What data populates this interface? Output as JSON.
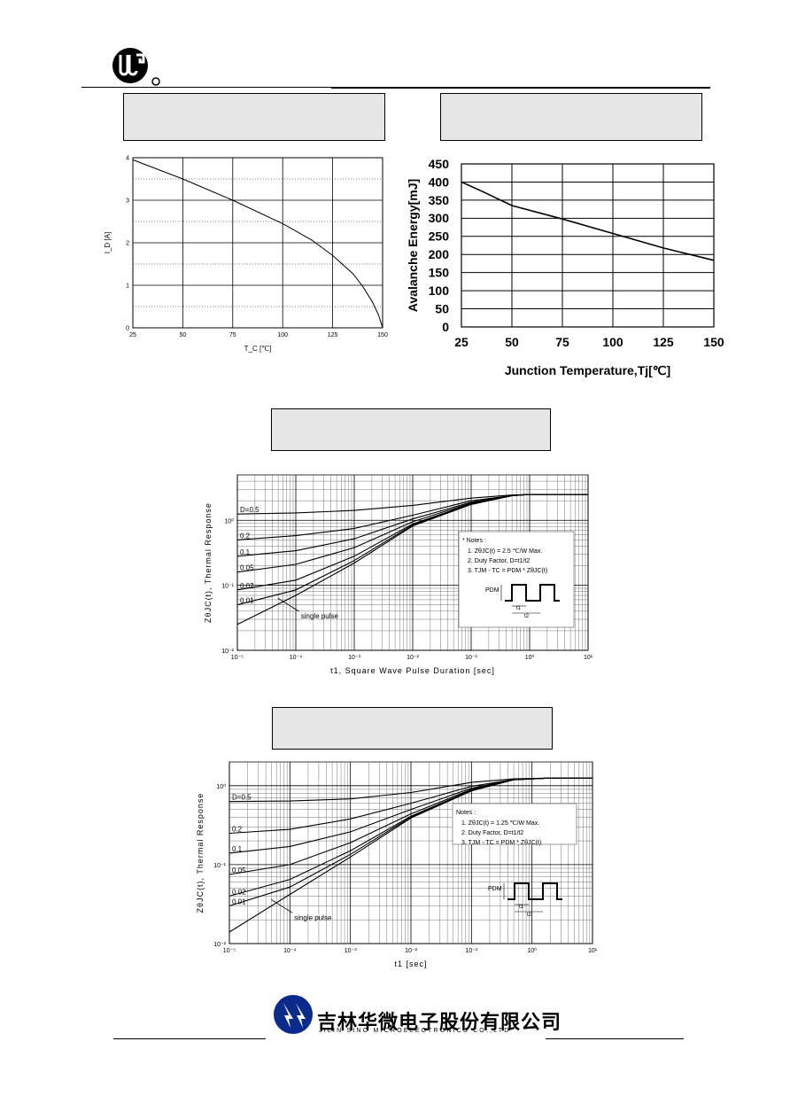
{
  "company": {
    "name_cn": "吉林华微电子股份有限公司",
    "name_en": "JILIN  SINO  MICROELECTRONICS  CO.,LTD"
  },
  "figures": {
    "id_vs_tc": {
      "chart_data": {
        "type": "line",
        "xlabel": "T_C [℃]",
        "ylabel": "I_D [A]",
        "xlim": [
          25,
          150
        ],
        "ylim": [
          0,
          4
        ],
        "xticks": [
          25,
          50,
          75,
          100,
          125,
          150
        ],
        "yticks": [
          0,
          1,
          2,
          3,
          4
        ],
        "grid": true,
        "series": [
          {
            "x": [
              25,
              50,
              75,
              100,
              115,
              125,
              135,
              140,
              145,
              148,
              150
            ],
            "y": [
              3.95,
              3.5,
              3.0,
              2.45,
              2.05,
              1.7,
              1.28,
              0.98,
              0.6,
              0.3,
              0
            ]
          }
        ]
      }
    },
    "eas_vs_tj": {
      "chart_data": {
        "type": "line",
        "xlabel": "Junction Temperature,Tj[℃]",
        "ylabel": "Avalanche Energy[mJ]",
        "xlim": [
          25,
          150
        ],
        "ylim": [
          0,
          450
        ],
        "xticks": [
          25,
          50,
          75,
          100,
          125,
          150
        ],
        "yticks": [
          0,
          50,
          100,
          150,
          200,
          250,
          300,
          350,
          400,
          450
        ],
        "grid": true,
        "series": [
          {
            "x": [
              25,
              35,
              50,
              75,
              100,
              125,
              150
            ],
            "y": [
              400,
              375,
              335,
              298,
              258,
              218,
              184
            ]
          }
        ]
      }
    },
    "thermal_1": {
      "chart_data": {
        "type": "line",
        "scale": "log-log",
        "xlabel": "t1, Square Wave Pulse Duration [sec]",
        "ylabel": "ZθJC(t), Thermal Response",
        "xlim": [
          1e-05,
          10
        ],
        "ylim": [
          0.01,
          5
        ],
        "xticks": [
          "10⁻⁵",
          "10⁻⁴",
          "10⁻³",
          "10⁻²",
          "10⁻¹",
          "10⁰",
          "10¹"
        ],
        "yticks": [
          "10⁻²",
          "10⁻¹",
          "10⁰"
        ],
        "grid": true,
        "series": [
          {
            "name": "D=0.5",
            "x": [
              1e-05,
              0.0001,
              0.001,
              0.01,
              0.1,
              0.5,
              1,
              10
            ],
            "y": [
              1.25,
              1.3,
              1.42,
              1.7,
              2.2,
              2.45,
              2.5,
              2.5
            ]
          },
          {
            "name": "0.2",
            "x": [
              1e-05,
              0.0001,
              0.001,
              0.01,
              0.1,
              0.5,
              1,
              10
            ],
            "y": [
              0.5,
              0.58,
              0.75,
              1.2,
              2.0,
              2.4,
              2.5,
              2.5
            ]
          },
          {
            "name": "0.1",
            "x": [
              1e-05,
              0.0001,
              0.001,
              0.01,
              0.1,
              0.5,
              1,
              10
            ],
            "y": [
              0.28,
              0.34,
              0.52,
              1.05,
              1.9,
              2.4,
              2.5,
              2.5
            ]
          },
          {
            "name": "0.05",
            "x": [
              1e-05,
              0.0001,
              0.001,
              0.01,
              0.1,
              0.5,
              1,
              10
            ],
            "y": [
              0.16,
              0.21,
              0.38,
              0.95,
              1.85,
              2.4,
              2.5,
              2.5
            ]
          },
          {
            "name": "0.02",
            "x": [
              1e-05,
              0.0001,
              0.001,
              0.01,
              0.1,
              0.5,
              1,
              10
            ],
            "y": [
              0.085,
              0.12,
              0.28,
              0.88,
              1.8,
              2.4,
              2.5,
              2.5
            ]
          },
          {
            "name": "0.01",
            "x": [
              1e-05,
              0.0001,
              0.001,
              0.01,
              0.1,
              0.5,
              1,
              10
            ],
            "y": [
              0.05,
              0.085,
              0.24,
              0.85,
              1.78,
              2.4,
              2.5,
              2.5
            ]
          },
          {
            "name": "single pulse",
            "x": [
              1e-05,
              0.0001,
              0.001,
              0.01,
              0.1,
              0.5,
              1,
              10
            ],
            "y": [
              0.025,
              0.07,
              0.22,
              0.82,
              1.75,
              2.4,
              2.5,
              2.5
            ]
          }
        ],
        "annotation": "single pulse"
      },
      "notes": {
        "title": "* Notes :",
        "line1": "1. ZθJC(t) = 2.5 ℃/W Max.",
        "line2": "2. Duty Factor, D=t1/t2",
        "line3": "3. TJM - TC = PDM * ZθJC(t)",
        "pdm": "PDM",
        "t1": "t1",
        "t2": "t2"
      }
    },
    "thermal_2": {
      "chart_data": {
        "type": "line",
        "scale": "log-log",
        "xlabel": "t1 [sec]",
        "ylabel": "ZθJC(t), Thermal Response",
        "xlim": [
          1e-05,
          10
        ],
        "ylim": [
          0.01,
          2
        ],
        "xticks": [
          "10⁻⁵",
          "10⁻⁴",
          "10⁻³",
          "10⁻²",
          "10⁻¹",
          "10⁰",
          "10¹"
        ],
        "yticks": [
          "10⁻²",
          "10⁻¹",
          "10⁰"
        ],
        "grid": true,
        "series": [
          {
            "name": "D=0.5",
            "x": [
              1e-05,
              0.0001,
              0.001,
              0.01,
              0.1,
              0.5,
              2,
              10
            ],
            "y": [
              0.63,
              0.64,
              0.68,
              0.82,
              1.1,
              1.22,
              1.25,
              1.25
            ]
          },
          {
            "name": "0.2",
            "x": [
              1e-05,
              0.0001,
              0.001,
              0.01,
              0.1,
              0.5,
              2,
              10
            ],
            "y": [
              0.25,
              0.28,
              0.38,
              0.6,
              0.98,
              1.2,
              1.25,
              1.25
            ]
          },
          {
            "name": "0.1",
            "x": [
              1e-05,
              0.0001,
              0.001,
              0.01,
              0.1,
              0.5,
              2,
              10
            ],
            "y": [
              0.14,
              0.17,
              0.26,
              0.5,
              0.93,
              1.2,
              1.25,
              1.25
            ]
          },
          {
            "name": "0.05",
            "x": [
              1e-05,
              0.0001,
              0.001,
              0.01,
              0.1,
              0.5,
              2,
              10
            ],
            "y": [
              0.075,
              0.1,
              0.19,
              0.44,
              0.9,
              1.19,
              1.25,
              1.25
            ]
          },
          {
            "name": "0.02",
            "x": [
              1e-05,
              0.0001,
              0.001,
              0.01,
              0.1,
              0.5,
              2,
              10
            ],
            "y": [
              0.04,
              0.065,
              0.15,
              0.41,
              0.88,
              1.19,
              1.25,
              1.25
            ]
          },
          {
            "name": "0.01",
            "x": [
              1e-05,
              0.0001,
              0.001,
              0.01,
              0.1,
              0.5,
              2,
              10
            ],
            "y": [
              0.03,
              0.052,
              0.135,
              0.4,
              0.87,
              1.19,
              1.25,
              1.25
            ]
          },
          {
            "name": "single pulse",
            "x": [
              1e-05,
              0.0001,
              0.001,
              0.01,
              0.1,
              0.5,
              2,
              10
            ],
            "y": [
              0.014,
              0.042,
              0.125,
              0.39,
              0.86,
              1.19,
              1.25,
              1.25
            ]
          }
        ],
        "annotation": "single pulse"
      },
      "notes": {
        "title": "Notes :",
        "line1": "1. ZθJC(t) = 1.25 ℃/W Max.",
        "line2": "2. Duty Factor, D=t1/t2",
        "line3": "3. TJM - TC = PDM * ZθJC(t)",
        "pdm": "PDM",
        "t1": "t1",
        "t2": "t2"
      }
    }
  }
}
